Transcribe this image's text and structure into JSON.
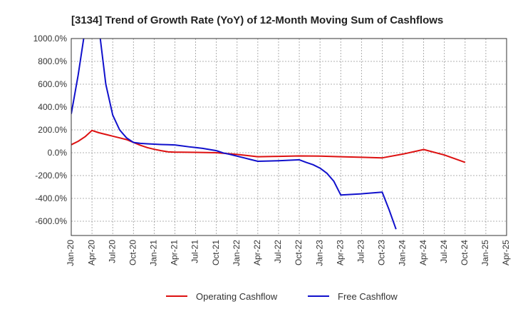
{
  "chart_data": {
    "type": "line",
    "title": "[3134]  Trend of Growth Rate (YoY) of 12-Month Moving Sum of Cashflows",
    "xlabel": "",
    "ylabel": "",
    "ylim": [
      -725,
      1000
    ],
    "xlim": [
      "2020-01",
      "2025-04"
    ],
    "y_ticks": [
      1000,
      800,
      600,
      400,
      200,
      0,
      -200,
      -400,
      -600
    ],
    "y_tick_labels": [
      "1000.0%",
      "800.0%",
      "600.0%",
      "400.0%",
      "200.0%",
      "0.0%",
      "-200.0%",
      "-400.0%",
      "-600.0%"
    ],
    "x_ticks": [
      "2020-01",
      "2020-04",
      "2020-07",
      "2020-10",
      "2021-01",
      "2021-04",
      "2021-07",
      "2021-10",
      "2022-01",
      "2022-04",
      "2022-07",
      "2022-10",
      "2023-01",
      "2023-04",
      "2023-07",
      "2023-10",
      "2024-01",
      "2024-04",
      "2024-07",
      "2024-10",
      "2025-01",
      "2025-04"
    ],
    "x_tick_labels": [
      "Jan-20",
      "Apr-20",
      "Jul-20",
      "Oct-20",
      "Jan-21",
      "Apr-21",
      "Jul-21",
      "Oct-21",
      "Jan-22",
      "Apr-22",
      "Jul-22",
      "Oct-22",
      "Jan-23",
      "Apr-23",
      "Jul-23",
      "Oct-23",
      "Jan-24",
      "Apr-24",
      "Jul-24",
      "Oct-24",
      "Jan-25",
      "Apr-25"
    ],
    "grid": true,
    "legend_position": "bottom-center",
    "series": [
      {
        "name": "Operating Cashflow",
        "color": "#dd1111",
        "x": [
          "2020-01",
          "2020-02",
          "2020-03",
          "2020-04",
          "2020-05",
          "2020-06",
          "2020-07",
          "2020-08",
          "2020-09",
          "2020-10",
          "2020-11",
          "2020-12",
          "2021-01",
          "2021-02",
          "2021-03",
          "2021-04",
          "2021-07",
          "2021-10",
          "2022-01",
          "2022-04",
          "2022-07",
          "2022-10",
          "2023-01",
          "2023-04",
          "2023-07",
          "2023-10",
          "2024-01",
          "2024-04",
          "2024-07",
          "2024-10"
        ],
        "values": [
          70,
          100,
          140,
          195,
          175,
          160,
          145,
          130,
          115,
          90,
          65,
          45,
          30,
          18,
          8,
          5,
          3,
          0,
          -15,
          -35,
          -32,
          -28,
          -30,
          -35,
          -40,
          -45,
          -12,
          28,
          -20,
          -85
        ]
      },
      {
        "name": "Free Cashflow",
        "color": "#1111cc",
        "x": [
          "2020-01",
          "2020-02",
          "2020-03",
          "2020-04",
          "2020-05",
          "2020-06",
          "2020-07",
          "2020-08",
          "2020-09",
          "2020-10",
          "2020-11",
          "2020-12",
          "2021-01",
          "2021-02",
          "2021-03",
          "2021-04",
          "2021-05",
          "2021-06",
          "2021-07",
          "2021-08",
          "2021-09",
          "2021-10",
          "2021-11",
          "2021-12",
          "2022-01",
          "2022-02",
          "2022-03",
          "2022-04",
          "2022-07",
          "2022-10",
          "2022-11",
          "2022-12",
          "2023-01",
          "2023-02",
          "2023-03",
          "2023-04",
          "2023-07",
          "2023-10",
          "2023-11",
          "2023-12"
        ],
        "values": [
          340,
          680,
          1080,
          1120,
          1100,
          600,
          330,
          200,
          130,
          90,
          82,
          78,
          75,
          72,
          70,
          68,
          60,
          52,
          45,
          38,
          28,
          18,
          -2,
          -15,
          -30,
          -45,
          -60,
          -75,
          -70,
          -62,
          -85,
          -105,
          -135,
          -180,
          -250,
          -370,
          -360,
          -345,
          -500,
          -670
        ]
      }
    ]
  }
}
